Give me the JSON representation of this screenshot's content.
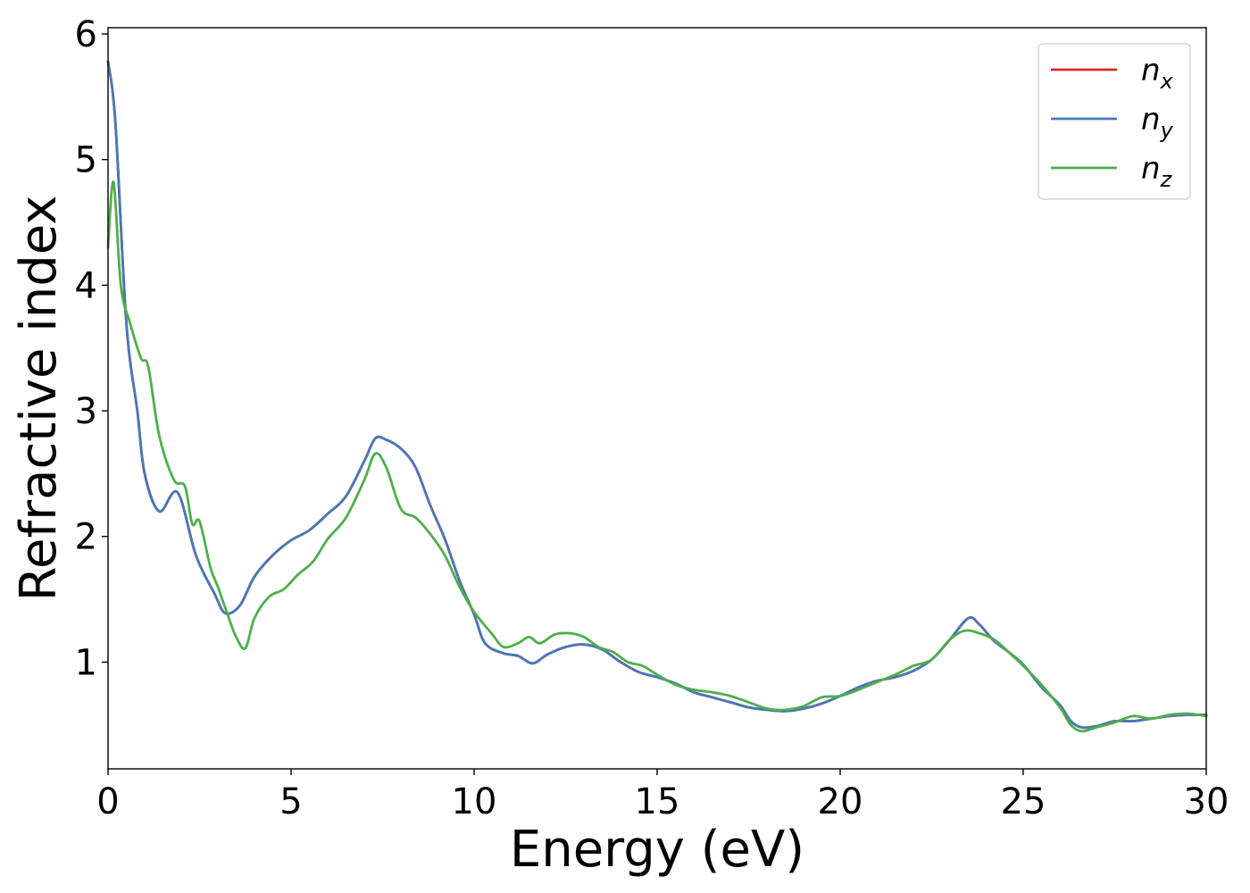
{
  "chart_data": {
    "type": "line",
    "title": "",
    "xlabel": "Energy (eV)",
    "ylabel": "Refractive index",
    "xlim": [
      0,
      30
    ],
    "ylim": [
      0.15,
      6.05
    ],
    "xticks": [
      0,
      5,
      10,
      15,
      20,
      25,
      30
    ],
    "yticks": [
      1,
      2,
      3,
      4,
      5,
      6
    ],
    "grid": false,
    "legend_position": "top-right",
    "series": [
      {
        "name": "n",
        "subscript": "x",
        "color": "#d62728",
        "points": [
          [
            0.0,
            5.78
          ],
          [
            0.2,
            5.3
          ],
          [
            0.5,
            3.7
          ],
          [
            0.8,
            3.0
          ],
          [
            1.0,
            2.5
          ],
          [
            1.4,
            2.2
          ],
          [
            1.9,
            2.35
          ],
          [
            2.4,
            1.85
          ],
          [
            2.9,
            1.55
          ],
          [
            3.2,
            1.39
          ],
          [
            3.6,
            1.45
          ],
          [
            4.0,
            1.68
          ],
          [
            4.5,
            1.85
          ],
          [
            5.0,
            1.97
          ],
          [
            5.5,
            2.05
          ],
          [
            6.0,
            2.18
          ],
          [
            6.5,
            2.32
          ],
          [
            7.0,
            2.6
          ],
          [
            7.3,
            2.78
          ],
          [
            7.6,
            2.77
          ],
          [
            8.0,
            2.7
          ],
          [
            8.4,
            2.55
          ],
          [
            8.8,
            2.25
          ],
          [
            9.2,
            1.98
          ],
          [
            9.6,
            1.65
          ],
          [
            10.0,
            1.38
          ],
          [
            10.3,
            1.15
          ],
          [
            10.8,
            1.07
          ],
          [
            11.2,
            1.05
          ],
          [
            11.6,
            0.99
          ],
          [
            12.0,
            1.06
          ],
          [
            12.5,
            1.12
          ],
          [
            13.0,
            1.14
          ],
          [
            13.5,
            1.1
          ],
          [
            14.0,
            1.0
          ],
          [
            14.5,
            0.92
          ],
          [
            15.0,
            0.88
          ],
          [
            15.5,
            0.83
          ],
          [
            16.0,
            0.76
          ],
          [
            16.5,
            0.72
          ],
          [
            17.0,
            0.68
          ],
          [
            17.5,
            0.64
          ],
          [
            18.0,
            0.62
          ],
          [
            18.5,
            0.61
          ],
          [
            19.0,
            0.63
          ],
          [
            19.5,
            0.67
          ],
          [
            20.0,
            0.73
          ],
          [
            20.5,
            0.8
          ],
          [
            21.0,
            0.85
          ],
          [
            21.5,
            0.88
          ],
          [
            22.0,
            0.93
          ],
          [
            22.5,
            1.02
          ],
          [
            23.0,
            1.18
          ],
          [
            23.5,
            1.35
          ],
          [
            23.8,
            1.3
          ],
          [
            24.2,
            1.17
          ],
          [
            24.6,
            1.08
          ],
          [
            25.0,
            0.98
          ],
          [
            25.5,
            0.8
          ],
          [
            26.0,
            0.66
          ],
          [
            26.3,
            0.53
          ],
          [
            26.6,
            0.48
          ],
          [
            27.0,
            0.49
          ],
          [
            27.5,
            0.53
          ],
          [
            28.0,
            0.53
          ],
          [
            28.5,
            0.55
          ],
          [
            29.0,
            0.57
          ],
          [
            29.5,
            0.58
          ],
          [
            30.0,
            0.58
          ]
        ]
      },
      {
        "name": "n",
        "subscript": "y",
        "color": "#4878b8",
        "points": [
          [
            0.0,
            5.78
          ],
          [
            0.2,
            5.3
          ],
          [
            0.5,
            3.7
          ],
          [
            0.8,
            3.0
          ],
          [
            1.0,
            2.5
          ],
          [
            1.4,
            2.2
          ],
          [
            1.9,
            2.35
          ],
          [
            2.4,
            1.85
          ],
          [
            2.9,
            1.55
          ],
          [
            3.2,
            1.39
          ],
          [
            3.6,
            1.45
          ],
          [
            4.0,
            1.68
          ],
          [
            4.5,
            1.85
          ],
          [
            5.0,
            1.97
          ],
          [
            5.5,
            2.05
          ],
          [
            6.0,
            2.18
          ],
          [
            6.5,
            2.32
          ],
          [
            7.0,
            2.6
          ],
          [
            7.3,
            2.78
          ],
          [
            7.6,
            2.77
          ],
          [
            8.0,
            2.7
          ],
          [
            8.4,
            2.55
          ],
          [
            8.8,
            2.25
          ],
          [
            9.2,
            1.98
          ],
          [
            9.6,
            1.65
          ],
          [
            10.0,
            1.38
          ],
          [
            10.3,
            1.15
          ],
          [
            10.8,
            1.07
          ],
          [
            11.2,
            1.05
          ],
          [
            11.6,
            0.99
          ],
          [
            12.0,
            1.06
          ],
          [
            12.5,
            1.12
          ],
          [
            13.0,
            1.14
          ],
          [
            13.5,
            1.1
          ],
          [
            14.0,
            1.0
          ],
          [
            14.5,
            0.92
          ],
          [
            15.0,
            0.88
          ],
          [
            15.5,
            0.83
          ],
          [
            16.0,
            0.76
          ],
          [
            16.5,
            0.72
          ],
          [
            17.0,
            0.68
          ],
          [
            17.5,
            0.64
          ],
          [
            18.0,
            0.62
          ],
          [
            18.5,
            0.61
          ],
          [
            19.0,
            0.63
          ],
          [
            19.5,
            0.67
          ],
          [
            20.0,
            0.73
          ],
          [
            20.5,
            0.8
          ],
          [
            21.0,
            0.85
          ],
          [
            21.5,
            0.88
          ],
          [
            22.0,
            0.93
          ],
          [
            22.5,
            1.02
          ],
          [
            23.0,
            1.18
          ],
          [
            23.5,
            1.35
          ],
          [
            23.8,
            1.3
          ],
          [
            24.2,
            1.17
          ],
          [
            24.6,
            1.08
          ],
          [
            25.0,
            0.98
          ],
          [
            25.5,
            0.8
          ],
          [
            26.0,
            0.66
          ],
          [
            26.3,
            0.53
          ],
          [
            26.6,
            0.48
          ],
          [
            27.0,
            0.49
          ],
          [
            27.5,
            0.53
          ],
          [
            28.0,
            0.53
          ],
          [
            28.5,
            0.55
          ],
          [
            29.0,
            0.57
          ],
          [
            29.5,
            0.58
          ],
          [
            30.0,
            0.58
          ]
        ]
      },
      {
        "name": "n",
        "subscript": "z",
        "color": "#4daf4a",
        "points": [
          [
            0.0,
            4.3
          ],
          [
            0.15,
            4.82
          ],
          [
            0.35,
            4.0
          ],
          [
            0.6,
            3.7
          ],
          [
            0.9,
            3.42
          ],
          [
            1.1,
            3.35
          ],
          [
            1.4,
            2.8
          ],
          [
            1.8,
            2.45
          ],
          [
            2.1,
            2.4
          ],
          [
            2.3,
            2.1
          ],
          [
            2.5,
            2.12
          ],
          [
            2.8,
            1.75
          ],
          [
            3.0,
            1.6
          ],
          [
            3.3,
            1.35
          ],
          [
            3.5,
            1.2
          ],
          [
            3.75,
            1.11
          ],
          [
            4.0,
            1.35
          ],
          [
            4.4,
            1.52
          ],
          [
            4.8,
            1.58
          ],
          [
            5.2,
            1.7
          ],
          [
            5.6,
            1.8
          ],
          [
            6.0,
            1.98
          ],
          [
            6.5,
            2.15
          ],
          [
            7.0,
            2.45
          ],
          [
            7.3,
            2.66
          ],
          [
            7.6,
            2.55
          ],
          [
            8.0,
            2.22
          ],
          [
            8.4,
            2.15
          ],
          [
            8.8,
            2.02
          ],
          [
            9.2,
            1.85
          ],
          [
            9.6,
            1.6
          ],
          [
            10.0,
            1.4
          ],
          [
            10.5,
            1.22
          ],
          [
            10.8,
            1.12
          ],
          [
            11.2,
            1.15
          ],
          [
            11.5,
            1.2
          ],
          [
            11.8,
            1.15
          ],
          [
            12.2,
            1.22
          ],
          [
            12.6,
            1.23
          ],
          [
            13.0,
            1.2
          ],
          [
            13.4,
            1.12
          ],
          [
            13.8,
            1.08
          ],
          [
            14.2,
            1.0
          ],
          [
            14.6,
            0.97
          ],
          [
            15.0,
            0.9
          ],
          [
            15.5,
            0.82
          ],
          [
            16.0,
            0.78
          ],
          [
            16.5,
            0.76
          ],
          [
            17.0,
            0.73
          ],
          [
            17.5,
            0.68
          ],
          [
            18.0,
            0.63
          ],
          [
            18.5,
            0.62
          ],
          [
            19.0,
            0.65
          ],
          [
            19.5,
            0.72
          ],
          [
            20.0,
            0.73
          ],
          [
            20.5,
            0.78
          ],
          [
            21.0,
            0.84
          ],
          [
            21.5,
            0.9
          ],
          [
            22.0,
            0.97
          ],
          [
            22.5,
            1.02
          ],
          [
            23.0,
            1.18
          ],
          [
            23.4,
            1.25
          ],
          [
            23.8,
            1.23
          ],
          [
            24.2,
            1.18
          ],
          [
            24.6,
            1.08
          ],
          [
            25.0,
            0.97
          ],
          [
            25.5,
            0.82
          ],
          [
            26.0,
            0.64
          ],
          [
            26.3,
            0.5
          ],
          [
            26.6,
            0.45
          ],
          [
            27.0,
            0.48
          ],
          [
            27.5,
            0.52
          ],
          [
            28.0,
            0.57
          ],
          [
            28.5,
            0.55
          ],
          [
            29.0,
            0.58
          ],
          [
            29.5,
            0.59
          ],
          [
            30.0,
            0.57
          ]
        ]
      }
    ]
  }
}
